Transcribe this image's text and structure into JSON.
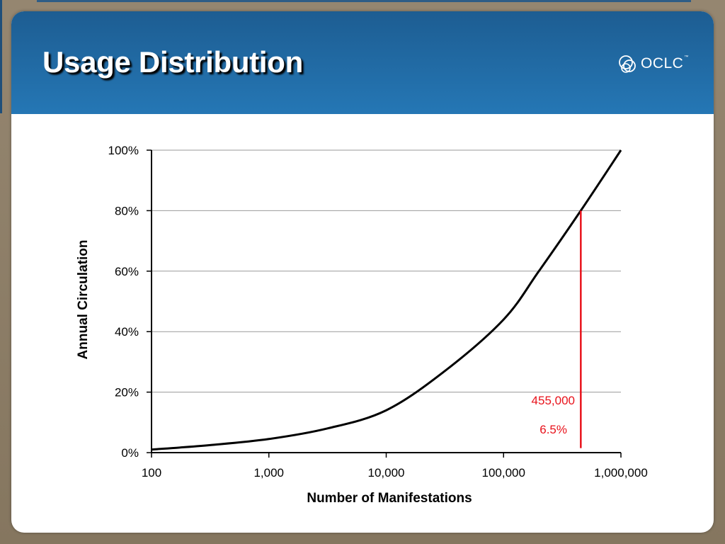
{
  "slide": {
    "title": "Usage Distribution",
    "logo_text": "OCLC",
    "logo_tm": "™"
  },
  "colors": {
    "header": "#2577b5",
    "curve": "#000000",
    "marker": "#e8121b",
    "grid": "#999999"
  },
  "chart_data": {
    "type": "line",
    "title": "",
    "xlabel": "Number of Manifestations",
    "ylabel": "Annual Circulation",
    "x_scale": "log",
    "xlim": [
      100,
      1000000
    ],
    "ylim": [
      0,
      100
    ],
    "x_ticks": [
      100,
      1000,
      10000,
      100000,
      1000000
    ],
    "x_tick_labels": [
      "100",
      "1,000",
      "10,000",
      "100,000",
      "1,000,000"
    ],
    "y_ticks": [
      0,
      20,
      40,
      60,
      80,
      100
    ],
    "y_tick_labels": [
      "0%",
      "20%",
      "40%",
      "60%",
      "80%",
      "100%"
    ],
    "grid": "horizontal",
    "series": [
      {
        "color": "#000000",
        "x": [
          100,
          316,
          1000,
          3162,
          10000,
          31623,
          100000,
          200000,
          455000,
          1000000
        ],
        "y": [
          1,
          2.5,
          4.5,
          8,
          14,
          27,
          44,
          60,
          80,
          100
        ]
      }
    ],
    "annotations": [
      {
        "type": "vline",
        "x": 455000,
        "y_from": 1.5,
        "y_to": 80,
        "color": "#e8121b"
      },
      {
        "type": "text",
        "text": "455,000",
        "color": "#e8121b"
      },
      {
        "type": "text",
        "text": "6.5%",
        "color": "#e8121b"
      }
    ]
  }
}
